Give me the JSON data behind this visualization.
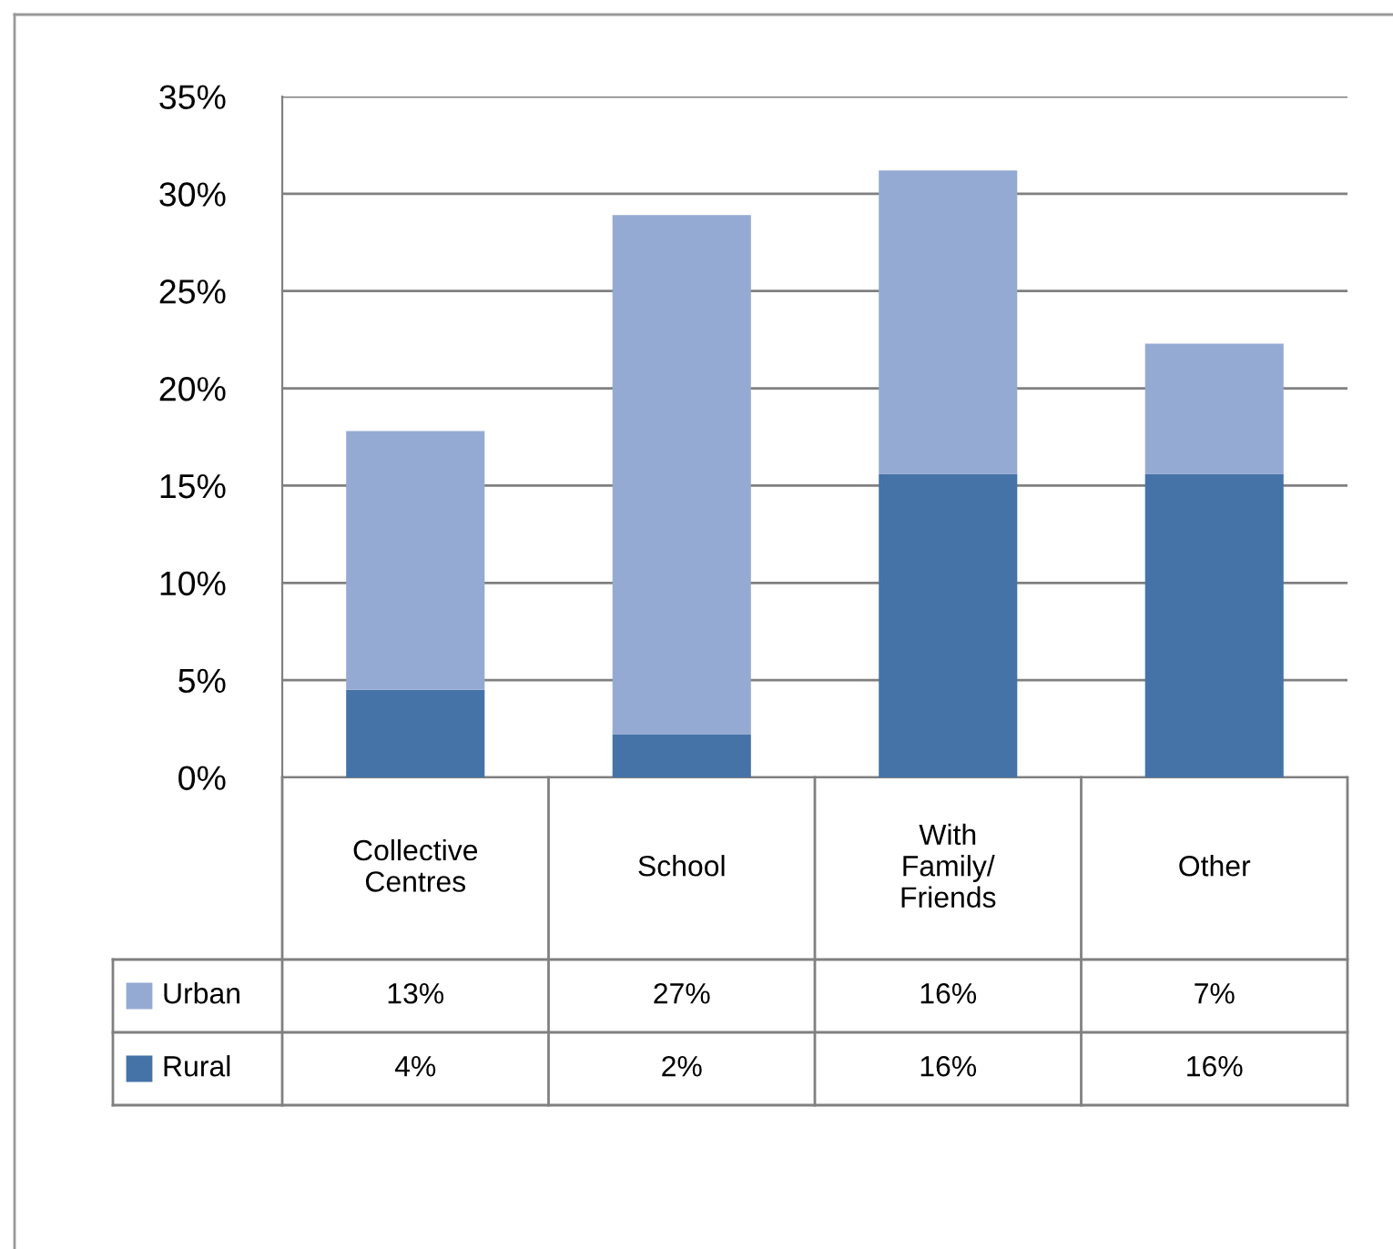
{
  "chart_data": {
    "type": "bar",
    "stacked": true,
    "categories": [
      "Collective\nCentres",
      "School",
      "With\nFamily/\nFriends",
      "Other"
    ],
    "series": [
      {
        "name": "Rural",
        "color": "#4573a7",
        "values": [
          4.5,
          2.2,
          15.6,
          15.6
        ],
        "value_labels": [
          "4%",
          "2%",
          "16%",
          "16%"
        ]
      },
      {
        "name": "Urban",
        "color": "#95aad3",
        "values": [
          13.3,
          26.7,
          15.6,
          6.7
        ],
        "value_labels": [
          "13%",
          "27%",
          "16%",
          "7%"
        ]
      }
    ],
    "ylim": [
      0,
      35
    ],
    "yticks": [
      {
        "value": 0,
        "label": "0%"
      },
      {
        "value": 5,
        "label": "5%"
      },
      {
        "value": 10,
        "label": "10%"
      },
      {
        "value": 15,
        "label": "15%"
      },
      {
        "value": 20,
        "label": "20%"
      },
      {
        "value": 25,
        "label": "25%"
      },
      {
        "value": 30,
        "label": "30%"
      },
      {
        "value": 35,
        "label": "35%"
      }
    ],
    "grid": "y",
    "legend": "bottom left"
  }
}
